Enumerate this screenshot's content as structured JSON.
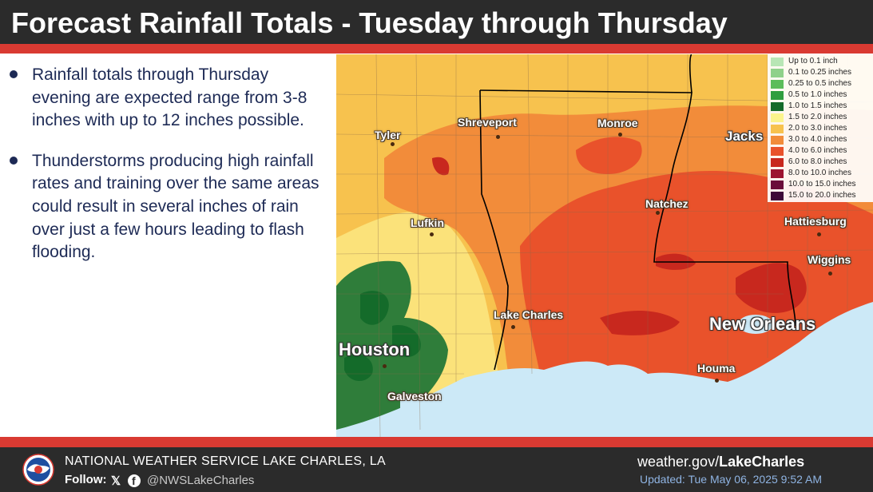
{
  "header": {
    "title": "Forecast Rainfall Totals - Tuesday through Thursday"
  },
  "bullets": [
    "Rainfall totals through Thursday evening are expected range from 3-8 inches with up to 12 inches possible.",
    "Thunderstorms producing high rainfall rates and training over the same areas could result in several inches of rain over just a few hours leading to flash flooding."
  ],
  "legend": [
    {
      "label": "Up to 0.1 inch",
      "color": "#b8e6b5"
    },
    {
      "label": "0.1 to 0.25 inches",
      "color": "#8fd18a"
    },
    {
      "label": "0.25 to 0.5 inches",
      "color": "#5cbd5a"
    },
    {
      "label": "0.5 to 1.0 inches",
      "color": "#2f9e3e"
    },
    {
      "label": "1.0 to 1.5 inches",
      "color": "#146b2a"
    },
    {
      "label": "1.5 to 2.0 inches",
      "color": "#fbf48c"
    },
    {
      "label": "2.0 to 3.0 inches",
      "color": "#f7c24e"
    },
    {
      "label": "3.0 to 4.0 inches",
      "color": "#f28c3a"
    },
    {
      "label": "4.0 to 6.0 inches",
      "color": "#e9522b"
    },
    {
      "label": "6.0 to 8.0 inches",
      "color": "#c8281e"
    },
    {
      "label": "8.0 to 10.0 inches",
      "color": "#9c1330"
    },
    {
      "label": "10.0 to 15.0 inches",
      "color": "#6b0c3a"
    },
    {
      "label": "15.0 to 20.0 inches",
      "color": "#3d0838"
    }
  ],
  "cities": {
    "shreveport": "Shreveport",
    "monroe": "Monroe",
    "tyler": "Tyler",
    "jackson": "Jacks",
    "natchez": "Natchez",
    "lufkin": "Lufkin",
    "hattiesburg": "Hattiesburg",
    "wiggins": "Wiggins",
    "lake_charles": "Lake Charles",
    "new_orleans": "New Orleans",
    "houston": "Houston",
    "houma": "Houma",
    "galveston": "Galveston"
  },
  "footer": {
    "office": "NATIONAL WEATHER SERVICE LAKE CHARLES, LA",
    "follow": "Follow:",
    "x_icon": "x-icon",
    "fb_icon": "facebook-icon",
    "handle": "@NWSLakeCharles",
    "site_prefix": "weather.gov/",
    "site_bold": "LakeCharles",
    "updated": "Updated: Tue May 06, 2025 9:52 AM"
  },
  "colors": {
    "header_bg": "#2b2b2b",
    "accent_red": "#d93a32",
    "text_navy": "#1d2a55",
    "water": "#cce9f7"
  }
}
